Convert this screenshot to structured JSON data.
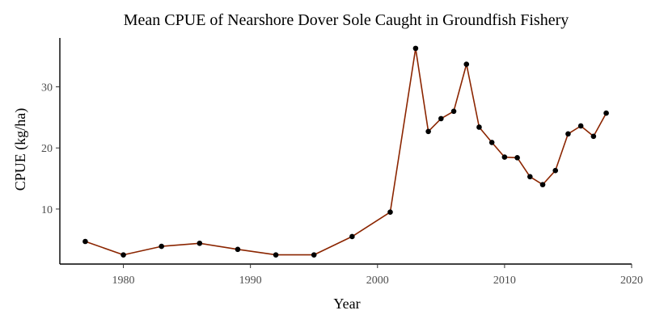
{
  "chart_data": {
    "type": "line",
    "title": "Mean CPUE of Nearshore Dover Sole Caught in Groundfish Fishery",
    "xlabel": "Year",
    "ylabel": "CPUE (kg/ha)",
    "xlim": [
      1975,
      2020
    ],
    "ylim": [
      1,
      38
    ],
    "x_ticks": [
      1980,
      1990,
      2000,
      2010,
      2020
    ],
    "y_ticks": [
      10,
      20,
      30
    ],
    "grid": false,
    "legend": "none",
    "line_color": "#8B2500",
    "point_color": "#000000",
    "x": [
      1977,
      1980,
      1983,
      1986,
      1989,
      1992,
      1995,
      1998,
      2001,
      2003,
      2004,
      2005,
      2006,
      2007,
      2008,
      2009,
      2010,
      2011,
      2012,
      2013,
      2014,
      2015,
      2016,
      2017,
      2018
    ],
    "y": [
      4.7,
      2.5,
      3.9,
      4.4,
      3.4,
      2.5,
      2.5,
      5.5,
      9.5,
      36.3,
      22.7,
      24.8,
      26.0,
      33.7,
      23.4,
      20.9,
      18.5,
      18.4,
      15.3,
      14.0,
      16.3,
      22.3,
      23.6,
      21.9,
      25.7
    ]
  }
}
